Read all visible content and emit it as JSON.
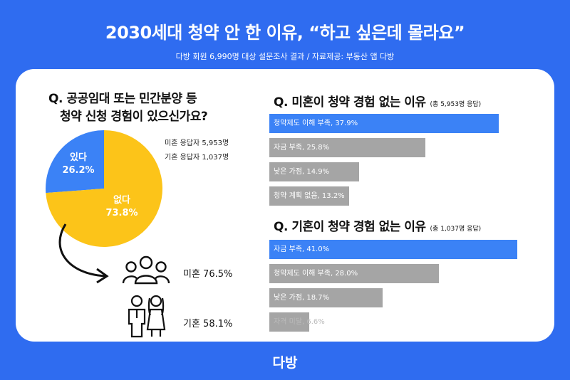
{
  "header": {
    "title": "2030세대 청약 안 한 이유, “하고 싶은데 몰라요”",
    "subtitle": "다방 회원 6,990명 대상 설문조사 결과 / 자료제공: 부동산 앱 다방"
  },
  "left": {
    "question_line1": "Q. 공공임대 또는 민간분양 등",
    "question_line2": "청약 신청 경험이 있으신가요?",
    "respondents_unmarried": "미혼 응답자 5,953명",
    "respondents_married": "기혼 응답자 1,037명",
    "marital": [
      {
        "label": "미혼 76.5%",
        "icon": "family-icon"
      },
      {
        "label": "기혼 58.1%",
        "icon": "couple-icon"
      }
    ]
  },
  "right": {
    "q1": {
      "title": "Q. 미혼이 청약 경험 없는 이유",
      "note": "(총 5,953명 응답)"
    },
    "q2": {
      "title": "Q. 기혼이 청약 경험 없는 이유",
      "note": "(총 1,037명 응답)"
    }
  },
  "colors": {
    "background": "#2f6cf0",
    "pie_yes": "#3b82f6",
    "pie_no": "#fcc419",
    "bar_top": "#3b82f6",
    "bar_other": "#a5a5a5"
  },
  "logo": "다방",
  "chart_data": [
    {
      "type": "pie",
      "slices": [
        {
          "label": "있다",
          "value": 26.2,
          "display": "있다 26.2%"
        },
        {
          "label": "없다",
          "value": 73.8,
          "display": "없다 73.8%"
        }
      ]
    },
    {
      "type": "bar",
      "orientation": "horizontal",
      "categories": [
        "청약제도 이해 부족",
        "자금 부족",
        "낮은 가점",
        "청약 계획 없음"
      ],
      "values": [
        37.9,
        25.8,
        14.9,
        13.2
      ],
      "labels": [
        "청약제도 이해 부족, 37.9%",
        "자금 부족, 25.8%",
        "낮은 가점, 14.9%",
        "청약 계획 없음, 13.2%"
      ]
    },
    {
      "type": "bar",
      "orientation": "horizontal",
      "categories": [
        "자금 부족",
        "청약제도 이해 부족",
        "낮은 가점",
        "자격 미달"
      ],
      "values": [
        41.0,
        28.0,
        18.7,
        6.6
      ],
      "labels": [
        "자금 부족, 41.0%",
        "청약제도 이해 부족, 28.0%",
        "낮은 가점, 18.7%",
        "자격 미달, 6.6%"
      ]
    }
  ]
}
